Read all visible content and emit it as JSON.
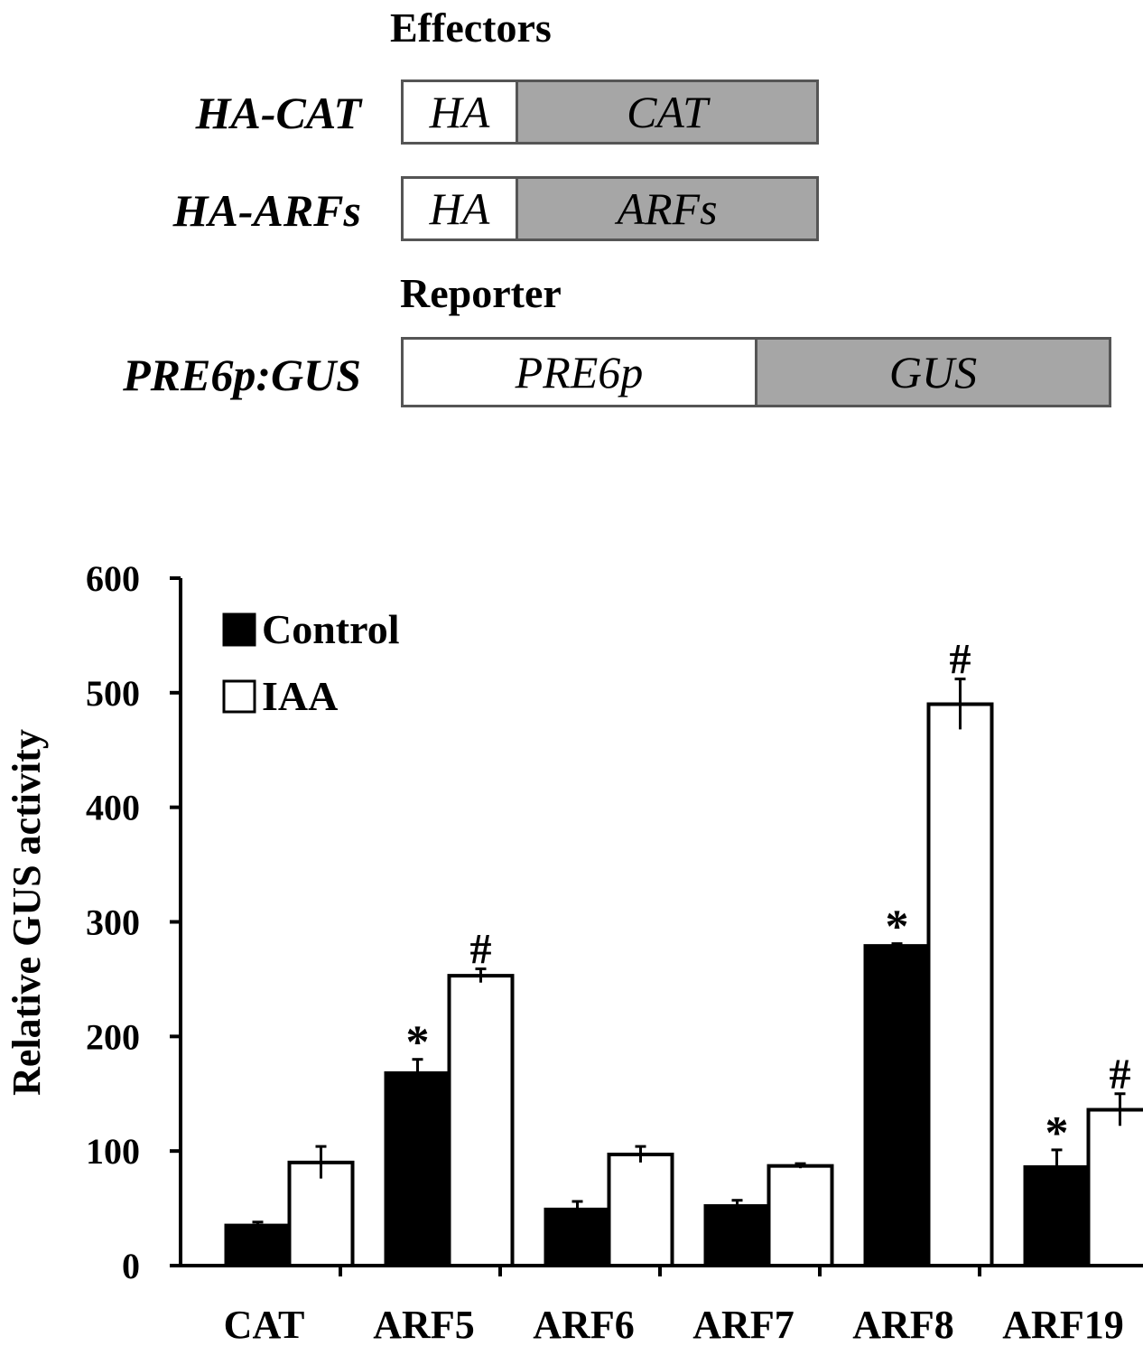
{
  "diagram": {
    "effectors_heading": "Effectors",
    "reporter_heading": "Reporter",
    "constructs": [
      {
        "label": "HA-CAT",
        "segments": [
          "HA",
          "CAT"
        ]
      },
      {
        "label": "HA-ARFs",
        "segments": [
          "HA",
          "ARFs"
        ]
      },
      {
        "label": "PRE6p:GUS",
        "segments": [
          "PRE6p",
          "GUS"
        ]
      }
    ]
  },
  "chart_data": {
    "type": "bar",
    "ylabel": "Relative GUS activity",
    "xlabel": "",
    "ylim": [
      0,
      600
    ],
    "yticks": [
      0,
      100,
      200,
      300,
      400,
      500,
      600
    ],
    "categories": [
      "CAT",
      "ARF5",
      "ARF6",
      "ARF7",
      "ARF8",
      "ARF19"
    ],
    "legend_position": "top-left",
    "series": [
      {
        "name": "Control",
        "fill": "#000000",
        "values": [
          35,
          168,
          49,
          52,
          279,
          86
        ],
        "errors": [
          3,
          12,
          7,
          5,
          2,
          15
        ],
        "markers": [
          "",
          "*",
          "",
          "",
          "*",
          "*"
        ]
      },
      {
        "name": "IAA",
        "fill": "#ffffff",
        "values": [
          90,
          253,
          97,
          87,
          490,
          136
        ],
        "errors": [
          14,
          6,
          7,
          2,
          22,
          14
        ],
        "markers": [
          "",
          "#",
          "",
          "",
          "#",
          "#"
        ]
      }
    ]
  }
}
